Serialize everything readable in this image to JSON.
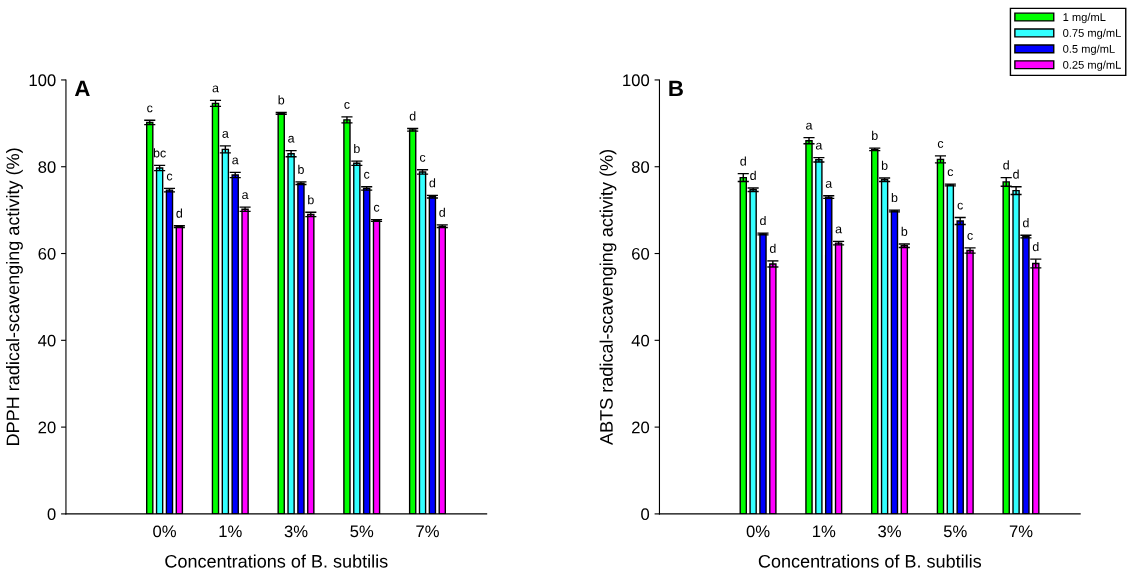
{
  "chart_data": [
    {
      "type": "bar",
      "title": "A",
      "xlabel": "Concentrations of B. subtilis",
      "ylabel": "DPPH radical-scavenging activity (%)",
      "categories": [
        "0%",
        "1%",
        "3%",
        "5%",
        "7%"
      ],
      "ylim": [
        0,
        100
      ],
      "yticks": [
        0,
        20,
        40,
        60,
        80,
        100
      ],
      "grid": false,
      "legend": "top right",
      "series": [
        {
          "name": "1 mg/mL",
          "color": "#00ff00",
          "values": [
            90.2,
            94.6,
            92.3,
            90.8,
            88.5
          ],
          "errors": [
            0.5,
            0.7,
            0.2,
            0.7,
            0.3
          ]
        },
        {
          "name": "0.75 mg/mL",
          "color": "#33ffff",
          "values": [
            79.7,
            84.0,
            83.0,
            80.8,
            78.8
          ],
          "errors": [
            0.6,
            0.8,
            0.7,
            0.5,
            0.5
          ]
        },
        {
          "name": "0.5 mg/mL",
          "color": "#0000ff",
          "values": [
            74.6,
            78.1,
            76.2,
            75.0,
            73.1
          ],
          "errors": [
            0.4,
            0.6,
            0.3,
            0.4,
            0.3
          ]
        },
        {
          "name": "0.25 mg/mL",
          "color": "#ff00ff",
          "values": [
            66.2,
            70.2,
            69.0,
            67.6,
            66.3
          ],
          "errors": [
            0.2,
            0.5,
            0.5,
            0.2,
            0.3
          ]
        }
      ],
      "annotations": [
        "c",
        "bc",
        "c",
        "d",
        "a",
        "a",
        "a",
        "a",
        "b",
        "a",
        "b",
        "b",
        "c",
        "b",
        "c",
        "c",
        "d",
        "c",
        "d",
        "d"
      ]
    },
    {
      "type": "bar",
      "title": "B",
      "xlabel": "Concentrations of B. subtilis",
      "ylabel": "ABTS radical-scavenging activity (%)",
      "categories": [
        "0%",
        "1%",
        "3%",
        "5%",
        "7%"
      ],
      "ylim": [
        0,
        100
      ],
      "yticks": [
        0,
        20,
        40,
        60,
        80,
        100
      ],
      "grid": false,
      "series": [
        {
          "color": "#00ff00",
          "values": [
            77.5,
            86.0,
            84.0,
            81.7,
            76.5
          ],
          "errors": [
            0.9,
            0.7,
            0.3,
            0.8,
            1.0
          ]
        },
        {
          "color": "#33ffff",
          "values": [
            74.7,
            81.6,
            77.0,
            75.8,
            74.5
          ],
          "errors": [
            0.4,
            0.5,
            0.4,
            0.2,
            0.9
          ]
        },
        {
          "color": "#0000ff",
          "values": [
            64.5,
            73.0,
            69.8,
            67.5,
            63.9
          ],
          "errors": [
            0.2,
            0.3,
            0.2,
            0.8,
            0.3
          ]
        },
        {
          "color": "#ff00ff",
          "values": [
            57.6,
            62.4,
            61.8,
            60.7,
            57.7
          ],
          "errors": [
            0.7,
            0.4,
            0.4,
            0.6,
            1.0
          ]
        }
      ],
      "annotations": [
        "d",
        "d",
        "d",
        "d",
        "a",
        "a",
        "a",
        "a",
        "b",
        "b",
        "b",
        "b",
        "c",
        "c",
        "c",
        "c",
        "d",
        "d",
        "d",
        "d"
      ]
    }
  ]
}
